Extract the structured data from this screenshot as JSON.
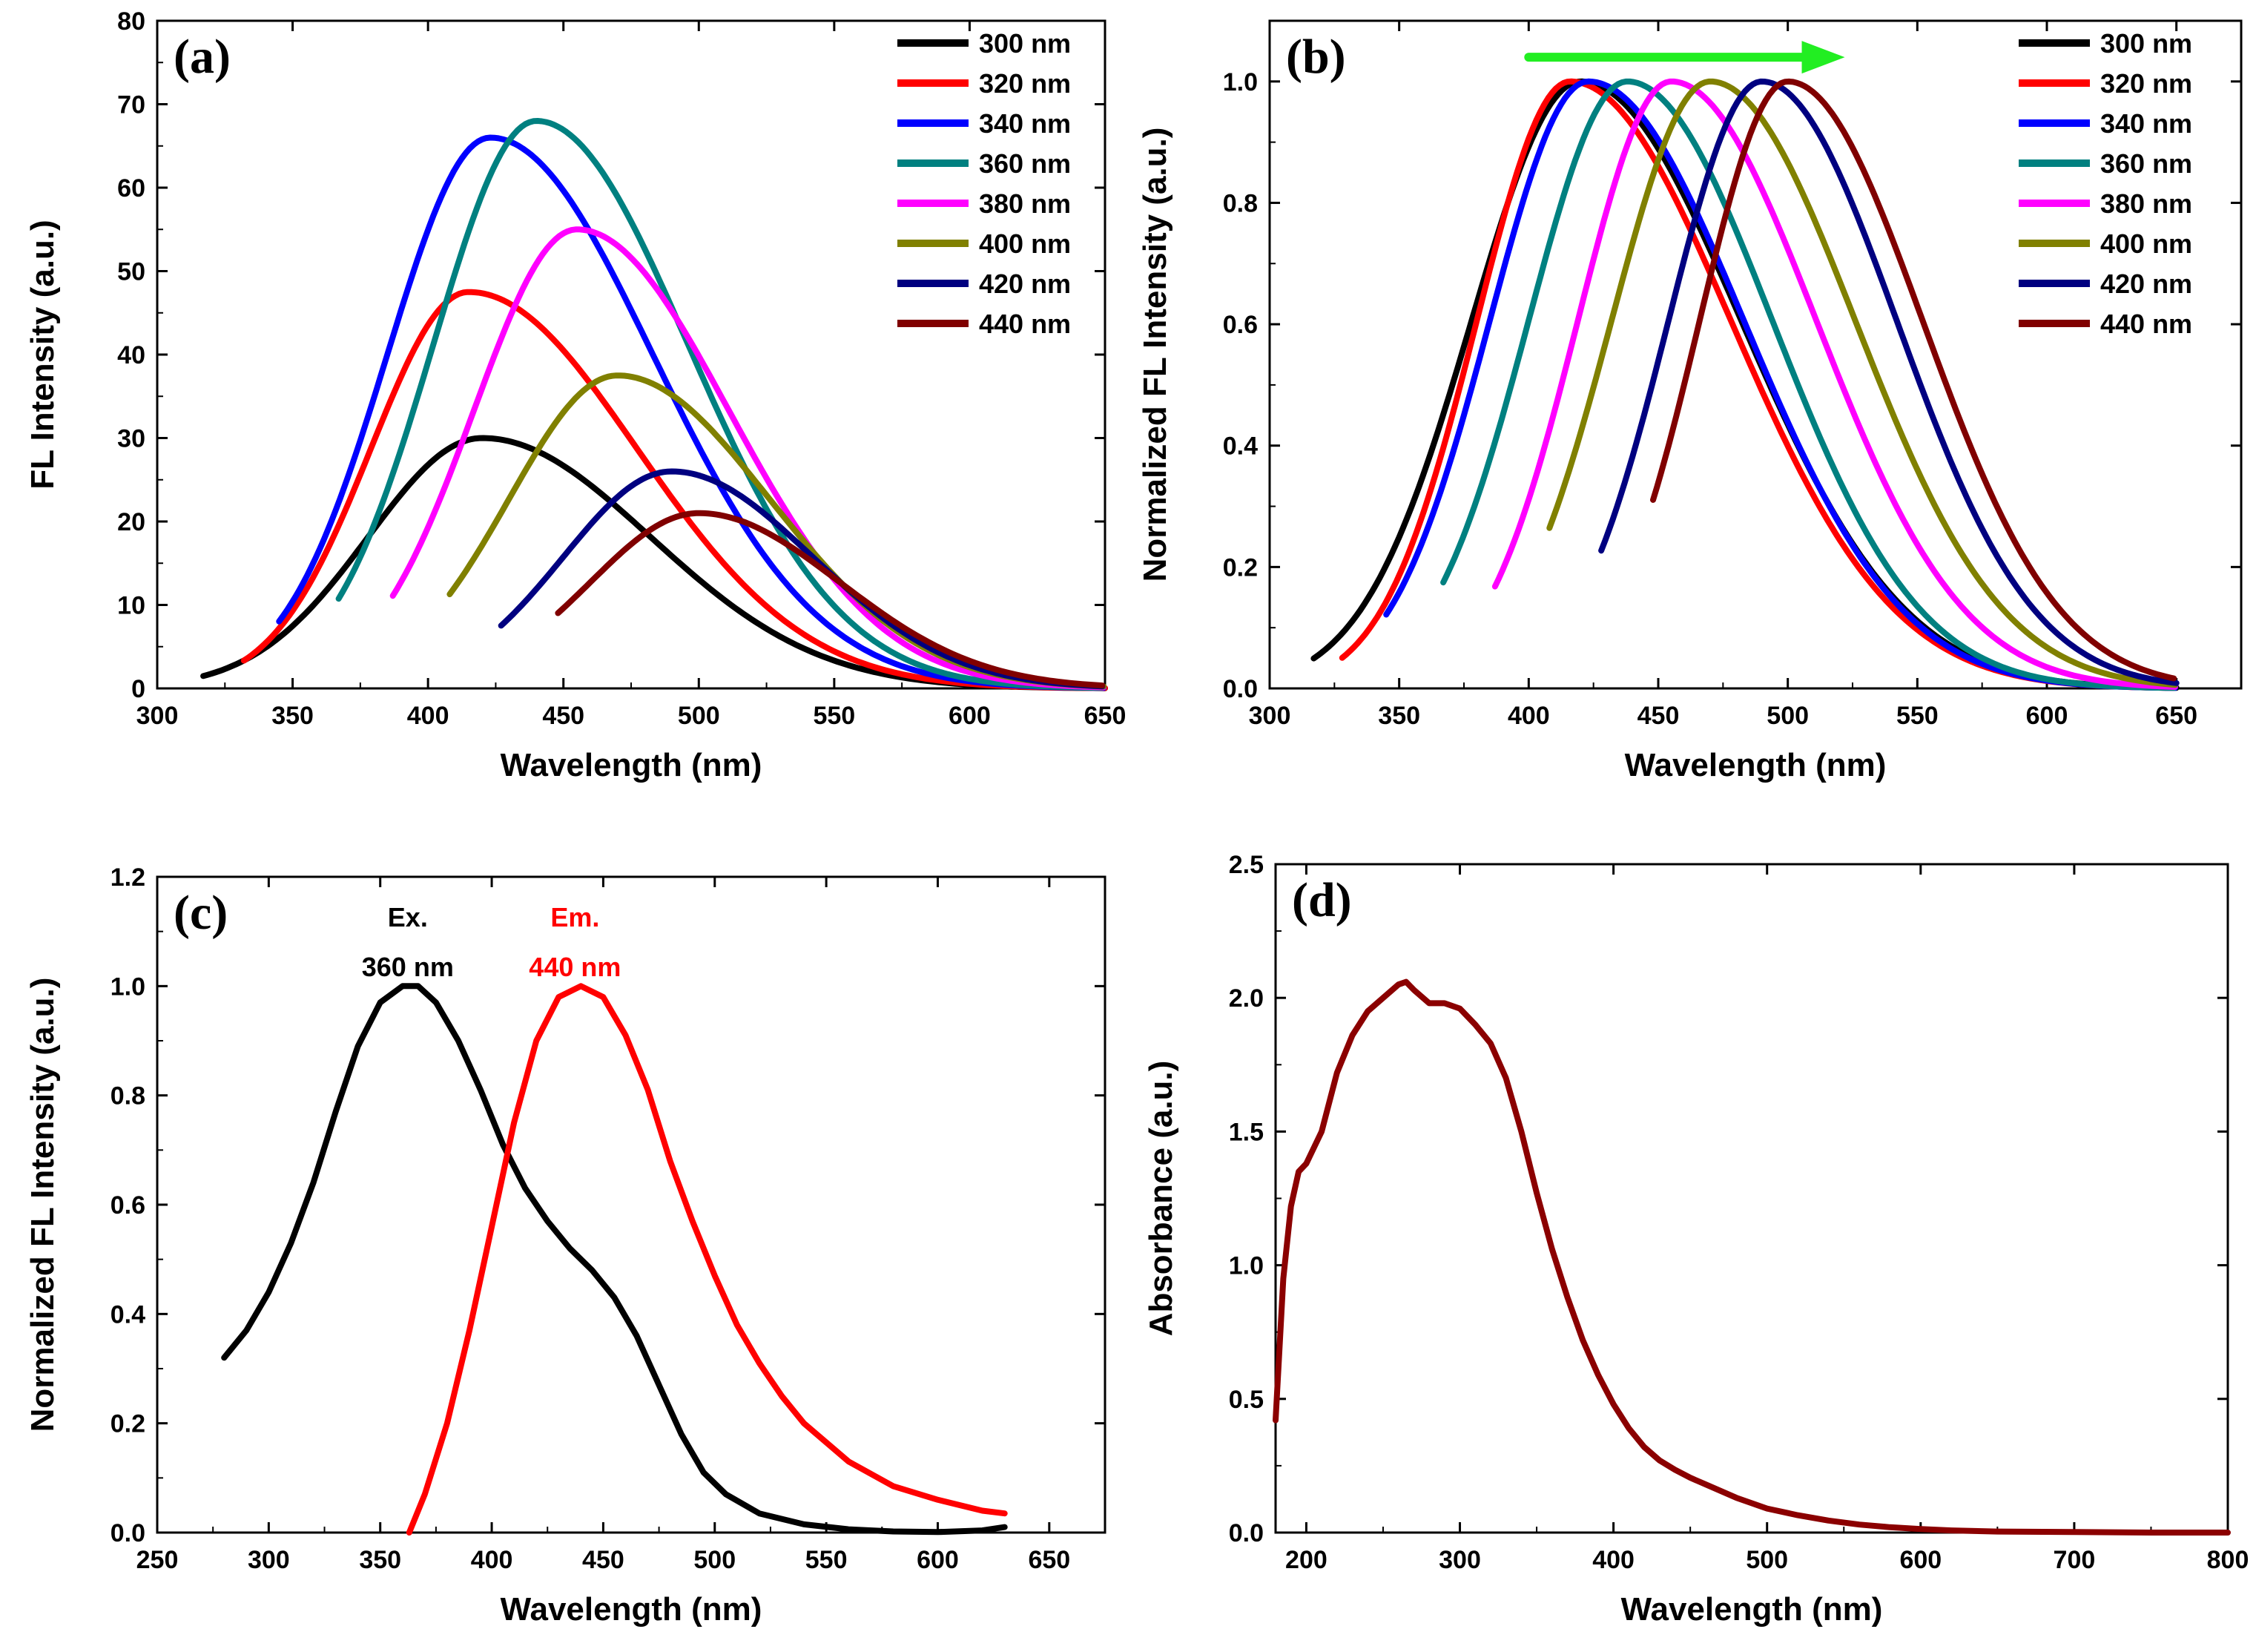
{
  "chart_data": [
    {
      "id": "a",
      "type": "line",
      "panel_label": "(a)",
      "xlabel": "Wavelength (nm)",
      "ylabel": "FL Intensity (a.u.)",
      "xlim": [
        300,
        650
      ],
      "ylim": [
        0,
        80
      ],
      "xticks": [
        300,
        350,
        400,
        450,
        500,
        550,
        600,
        650
      ],
      "yticks": [
        0,
        10,
        20,
        30,
        40,
        50,
        60,
        70,
        80
      ],
      "legend_position": "top-right",
      "series": [
        {
          "name": "300 nm",
          "color": "#000000",
          "start": 317,
          "end": 650,
          "peak": 420,
          "amp": 30,
          "sl": 42,
          "sr": 62,
          "floor": 0
        },
        {
          "name": "320 nm",
          "color": "#ff0000",
          "start": 332,
          "end": 650,
          "peak": 415,
          "amp": 47.5,
          "sl": 36,
          "sr": 62,
          "floor": 0
        },
        {
          "name": "340 nm",
          "color": "#0000ff",
          "start": 345,
          "end": 650,
          "peak": 423,
          "amp": 66,
          "sl": 38,
          "sr": 60,
          "floor": 0
        },
        {
          "name": "360 nm",
          "color": "#008080",
          "start": 367,
          "end": 650,
          "peak": 440,
          "amp": 68,
          "sl": 38,
          "sr": 56,
          "floor": 0
        },
        {
          "name": "380 nm",
          "color": "#ff00ff",
          "start": 387,
          "end": 650,
          "peak": 455,
          "amp": 55,
          "sl": 38,
          "sr": 56,
          "floor": 0
        },
        {
          "name": "400 nm",
          "color": "#808000",
          "start": 408,
          "end": 650,
          "peak": 470,
          "amp": 37.5,
          "sl": 40,
          "sr": 56,
          "floor": 0
        },
        {
          "name": "420 nm",
          "color": "#000080",
          "start": 427,
          "end": 650,
          "peak": 490,
          "amp": 26,
          "sl": 40,
          "sr": 52,
          "floor": 0
        },
        {
          "name": "440 nm",
          "color": "#800000",
          "start": 448,
          "end": 650,
          "peak": 500,
          "amp": 21,
          "sl": 40,
          "sr": 52,
          "floor": 0
        }
      ]
    },
    {
      "id": "b",
      "type": "line",
      "panel_label": "(b)",
      "xlabel": "Wavelength (nm)",
      "ylabel": "Normalized FL Intensity (a.u.)",
      "xlim": [
        300,
        675
      ],
      "ylim": [
        0,
        1.1
      ],
      "xticks": [
        300,
        350,
        400,
        450,
        500,
        550,
        600,
        650
      ],
      "yticks": [
        0.0,
        0.2,
        0.4,
        0.6,
        0.8,
        1.0
      ],
      "legend_position": "top-right",
      "arrow_annotation": {
        "from": 400,
        "to": 522,
        "y": 1.04,
        "color": "#22ee22"
      },
      "series": [
        {
          "name": "300 nm",
          "color": "#000000",
          "start": 317,
          "end": 650,
          "peak": 420,
          "amp": 1,
          "sl": 42,
          "sr": 62,
          "floor": 0
        },
        {
          "name": "320 nm",
          "color": "#ff0000",
          "start": 328,
          "end": 650,
          "peak": 416,
          "amp": 1,
          "sl": 36,
          "sr": 62,
          "floor": 0
        },
        {
          "name": "340 nm",
          "color": "#0000ff",
          "start": 345,
          "end": 650,
          "peak": 423,
          "amp": 1,
          "sl": 38,
          "sr": 60,
          "floor": 0
        },
        {
          "name": "360 nm",
          "color": "#008080",
          "start": 367,
          "end": 650,
          "peak": 438,
          "amp": 1,
          "sl": 38,
          "sr": 56,
          "floor": 0
        },
        {
          "name": "380 nm",
          "color": "#ff00ff",
          "start": 387,
          "end": 650,
          "peak": 455,
          "amp": 1,
          "sl": 36,
          "sr": 56,
          "floor": 0
        },
        {
          "name": "400 nm",
          "color": "#808000",
          "start": 408,
          "end": 650,
          "peak": 470,
          "amp": 1,
          "sl": 38,
          "sr": 56,
          "floor": 0
        },
        {
          "name": "420 nm",
          "color": "#000080",
          "start": 428,
          "end": 650,
          "peak": 490,
          "amp": 1,
          "sl": 36,
          "sr": 52,
          "floor": 0
        },
        {
          "name": "440 nm",
          "color": "#800000",
          "start": 448,
          "end": 650,
          "peak": 500,
          "amp": 1,
          "sl": 34,
          "sr": 52,
          "floor": 0
        }
      ]
    },
    {
      "id": "c",
      "type": "line",
      "panel_label": "(c)",
      "xlabel": "Wavelength (nm)",
      "ylabel": "Normalized FL Intensity (a.u.)",
      "xlim": [
        250,
        675
      ],
      "ylim": [
        0,
        1.2
      ],
      "xticks": [
        250,
        300,
        350,
        400,
        450,
        500,
        550,
        600,
        650
      ],
      "yticks": [
        0.0,
        0.2,
        0.4,
        0.6,
        0.8,
        1.0,
        1.2
      ],
      "series": [
        {
          "name": "Ex. 360 nm",
          "color": "#000000",
          "x": [
            280,
            290,
            300,
            310,
            320,
            330,
            340,
            350,
            360,
            367,
            375,
            385,
            395,
            405,
            415,
            425,
            435,
            445,
            455,
            465,
            475,
            485,
            495,
            505,
            520,
            540,
            560,
            580,
            600,
            620,
            630
          ],
          "y": [
            0.32,
            0.37,
            0.44,
            0.53,
            0.64,
            0.77,
            0.89,
            0.97,
            1.0,
            1.0,
            0.97,
            0.9,
            0.81,
            0.71,
            0.63,
            0.57,
            0.52,
            0.48,
            0.43,
            0.36,
            0.27,
            0.18,
            0.11,
            0.07,
            0.035,
            0.015,
            0.006,
            0.002,
            0.001,
            0.004,
            0.01
          ]
        },
        {
          "name": "Em. 440 nm",
          "color": "#ff0000",
          "x": [
            363,
            370,
            380,
            390,
            400,
            410,
            420,
            430,
            440,
            450,
            460,
            470,
            480,
            490,
            500,
            510,
            520,
            530,
            540,
            560,
            580,
            600,
            620,
            630
          ],
          "y": [
            0.0,
            0.07,
            0.2,
            0.37,
            0.56,
            0.75,
            0.9,
            0.98,
            1.0,
            0.98,
            0.91,
            0.81,
            0.68,
            0.57,
            0.47,
            0.38,
            0.31,
            0.25,
            0.2,
            0.13,
            0.085,
            0.06,
            0.04,
            0.035
          ]
        }
      ],
      "annotations": [
        {
          "line1": "Ex.",
          "line2": "360 nm",
          "x": 365,
          "color": "#000000"
        },
        {
          "line1": "Em.",
          "line2": "440 nm",
          "x": 440,
          "color": "#ff0000"
        }
      ]
    },
    {
      "id": "d",
      "type": "line",
      "panel_label": "(d)",
      "xlabel": "Wavelength (nm)",
      "ylabel": "Absorbance (a.u.)",
      "xlim": [
        180,
        800
      ],
      "ylim": [
        0,
        2.5
      ],
      "xticks": [
        200,
        300,
        400,
        500,
        600,
        700,
        800
      ],
      "yticks": [
        0.0,
        0.5,
        1.0,
        1.5,
        2.0,
        2.5
      ],
      "series": [
        {
          "name": "Absorbance",
          "color": "#8b0000",
          "x": [
            180,
            185,
            190,
            195,
            200,
            210,
            220,
            230,
            240,
            250,
            260,
            265,
            270,
            280,
            290,
            300,
            310,
            320,
            330,
            340,
            350,
            360,
            370,
            380,
            390,
            400,
            410,
            420,
            430,
            440,
            450,
            460,
            470,
            480,
            490,
            500,
            520,
            540,
            560,
            580,
            600,
            620,
            650,
            700,
            750,
            800
          ],
          "y": [
            0.42,
            0.95,
            1.22,
            1.35,
            1.38,
            1.5,
            1.72,
            1.86,
            1.95,
            2.0,
            2.05,
            2.06,
            2.03,
            1.98,
            1.98,
            1.96,
            1.9,
            1.83,
            1.7,
            1.5,
            1.27,
            1.06,
            0.88,
            0.72,
            0.59,
            0.48,
            0.39,
            0.32,
            0.27,
            0.235,
            0.205,
            0.18,
            0.155,
            0.13,
            0.11,
            0.09,
            0.065,
            0.045,
            0.03,
            0.02,
            0.013,
            0.008,
            0.004,
            0.002,
            0.0,
            0.0
          ]
        }
      ]
    }
  ]
}
